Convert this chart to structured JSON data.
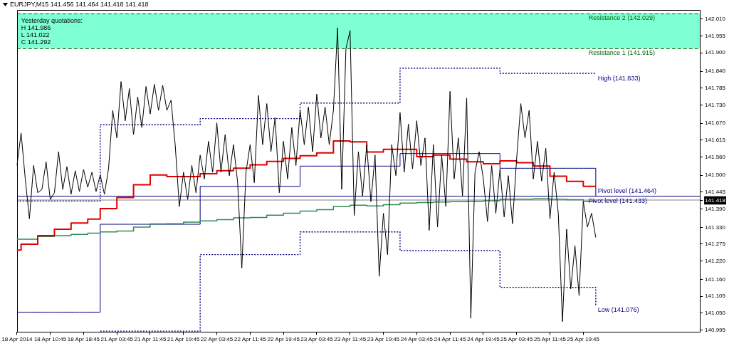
{
  "chart_data": {
    "type": "line",
    "title": "EURJPY,M15 141.456 141.464 141.418 141.418",
    "categories": [
      "18 Apr 2014",
      null,
      null,
      null,
      null,
      null,
      null,
      null,
      "18 Apr 10:45",
      null,
      null,
      null,
      null,
      null,
      null,
      null,
      "18 Apr 18:45",
      null,
      null,
      null,
      null,
      null,
      null,
      null,
      "21 Apr 03:45",
      null,
      null,
      null,
      null,
      null,
      null,
      null,
      "21 Apr 11:45",
      null,
      null,
      null,
      null,
      null,
      null,
      null,
      "21 Apr 19:45",
      null,
      null,
      null,
      null,
      null,
      null,
      null,
      "22 Apr 03:45",
      null,
      null,
      null,
      null,
      null,
      null,
      null,
      "22 Apr 11:45",
      null,
      null,
      null,
      null,
      null,
      null,
      null,
      "22 Apr 19:45",
      null,
      null,
      null,
      null,
      null,
      null,
      null,
      "23 Apr 03:45",
      null,
      null,
      null,
      null,
      null,
      null,
      null,
      "23 Apr 11:45",
      null,
      null,
      null,
      null,
      null,
      null,
      null,
      "23 Apr 19:45",
      null,
      null,
      null,
      null,
      null,
      null,
      null,
      "24 Apr 03:45",
      null,
      null,
      null,
      null,
      null,
      null,
      null,
      "24 Apr 11:45",
      null,
      null,
      null,
      null,
      null,
      null,
      null,
      "24 Apr 19:45",
      null,
      null,
      null,
      null,
      null,
      null,
      null,
      "25 Apr 03:45",
      null,
      null,
      null,
      null,
      null,
      null,
      null,
      "25 Apr 11:45",
      null,
      null,
      null,
      null,
      null,
      null,
      null,
      "25 Apr 19:45",
      null,
      null,
      null,
      null,
      null,
      null,
      null,
      null,
      null,
      null,
      null,
      null,
      null,
      null,
      null,
      null,
      null,
      null,
      null,
      null,
      null,
      null,
      null,
      null,
      null,
      null,
      null,
      null
    ],
    "ylim": [
      140.988,
      142.04
    ],
    "yticks": [
      140.995,
      {
        "value": 141.05,
        "label": "141.050"
      },
      141.105,
      {
        "value": 141.16,
        "label": "141.160"
      },
      {
        "value": 141.22,
        "label": "141.220"
      },
      141.275,
      {
        "value": 141.33,
        "label": "141.330"
      },
      {
        "value": 141.39,
        "label": "141.390"
      },
      141.418,
      141.445,
      {
        "value": 141.5,
        "label": "141.500"
      },
      {
        "value": 141.56,
        "label": "141.560"
      },
      141.615,
      {
        "value": 141.67,
        "label": "141.670"
      },
      {
        "value": 141.73,
        "label": "141.730"
      },
      141.785,
      {
        "value": 141.84,
        "label": "141.840"
      },
      {
        "value": 141.9,
        "label": "141.900"
      },
      141.955,
      {
        "value": 142.01,
        "label": "142.010"
      }
    ],
    "grid": false,
    "series": [
      {
        "color": "#000000",
        "values": [
          141.532,
          141.638,
          141.488,
          141.358,
          141.532,
          141.443,
          141.454,
          141.544,
          141.421,
          141.443,
          141.577,
          141.454,
          141.528,
          141.438,
          141.515,
          141.447,
          141.519,
          141.461,
          141.51,
          141.447,
          141.501,
          141.438,
          141.521,
          141.712,
          141.622,
          141.806,
          141.678,
          141.783,
          141.633,
          141.756,
          141.656,
          141.79,
          141.7,
          141.797,
          141.712,
          141.794,
          141.712,
          141.745,
          141.6,
          141.398,
          141.51,
          141.421,
          141.532,
          141.443,
          141.566,
          141.488,
          141.611,
          141.51,
          141.671,
          141.51,
          141.633,
          141.499,
          141.6,
          141.476,
          141.197,
          141.51,
          141.6,
          141.476,
          141.761,
          141.6,
          141.734,
          141.577,
          141.689,
          141.443,
          141.611,
          141.488,
          141.656,
          141.532,
          141.712,
          141.6,
          141.723,
          141.577,
          141.765,
          141.622,
          141.723,
          141.6,
          141.712,
          141.982,
          141.454,
          141.913,
          141.973,
          141.369,
          141.577,
          141.432,
          141.6,
          141.414,
          141.566,
          141.17,
          141.376,
          141.241,
          141.6,
          141.499,
          141.705,
          141.51,
          141.667,
          141.521,
          141.678,
          141.532,
          141.622,
          141.32,
          141.6,
          141.331,
          141.566,
          141.398,
          141.774,
          141.488,
          141.622,
          141.432,
          141.752,
          141.033,
          141.51,
          141.577,
          141.488,
          141.349,
          141.532,
          141.376,
          141.521,
          141.364,
          141.499,
          141.342,
          141.555,
          141.734,
          141.622,
          141.712,
          141.488,
          141.611,
          141.481,
          141.588,
          141.358,
          141.51,
          141.376,
          141.022,
          141.324,
          141.129,
          141.27,
          141.107,
          141.414,
          141.331,
          141.376,
          141.297,
          null,
          null,
          null,
          null,
          null,
          null,
          null,
          null,
          null,
          null,
          null,
          null,
          null,
          null,
          null,
          null,
          null,
          null,
          null,
          null,
          null,
          null,
          null,
          null,
          null
        ]
      },
      {
        "type": "step",
        "color": "#e00000",
        "values": [
          141.256,
          141.275,
          141.275,
          141.275,
          141.275,
          141.303,
          141.303,
          141.303,
          141.303,
          141.324,
          141.324,
          141.324,
          141.324,
          141.344,
          141.344,
          141.344,
          141.344,
          141.357,
          141.357,
          141.357,
          141.391,
          141.391,
          141.391,
          141.391,
          141.427,
          141.427,
          141.427,
          141.427,
          141.469,
          141.469,
          141.469,
          141.469,
          141.501,
          141.501,
          141.501,
          141.501,
          141.496,
          141.496,
          141.496,
          141.496,
          141.496,
          141.496,
          141.496,
          141.496,
          141.505,
          141.505,
          141.505,
          141.505,
          141.515,
          141.515,
          141.515,
          141.515,
          141.523,
          141.523,
          141.523,
          141.523,
          141.534,
          141.534,
          141.534,
          141.534,
          141.545,
          141.545,
          141.545,
          141.545,
          141.555,
          141.555,
          141.555,
          141.555,
          141.564,
          141.564,
          141.564,
          141.564,
          141.573,
          141.573,
          141.573,
          141.573,
          141.612,
          141.612,
          141.612,
          141.612,
          141.609,
          141.609,
          141.609,
          141.609,
          141.576,
          141.576,
          141.576,
          141.576,
          141.585,
          141.585,
          141.585,
          141.585,
          141.585,
          141.585,
          141.585,
          141.585,
          141.561,
          141.561,
          141.561,
          141.561,
          141.566,
          141.566,
          141.566,
          141.566,
          141.553,
          141.553,
          141.553,
          141.553,
          141.544,
          141.544,
          141.544,
          141.544,
          141.538,
          141.538,
          141.538,
          141.538,
          141.547,
          141.547,
          141.547,
          141.547,
          141.541,
          141.541,
          141.541,
          141.541,
          141.53,
          141.53,
          141.53,
          141.53,
          141.497,
          141.497,
          141.497,
          141.497,
          141.48,
          141.48,
          141.48,
          141.48,
          141.464,
          141.464,
          141.464,
          141.464,
          null,
          null,
          null,
          null,
          null,
          null,
          null,
          null,
          null,
          null,
          null,
          null,
          null,
          null,
          null,
          null,
          null,
          null,
          null,
          null,
          null,
          null,
          null,
          null,
          null
        ]
      },
      {
        "type": "step",
        "color": "#2e8b57",
        "values": [
          141.291,
          141.291,
          141.291,
          141.291,
          141.291,
          141.3,
          141.3,
          141.3,
          141.3,
          141.303,
          141.303,
          141.303,
          141.303,
          141.307,
          141.307,
          141.307,
          141.307,
          141.311,
          141.311,
          141.311,
          141.315,
          141.315,
          141.315,
          141.315,
          141.318,
          141.318,
          141.318,
          141.318,
          141.331,
          141.331,
          141.331,
          141.331,
          141.341,
          141.341,
          141.341,
          141.341,
          141.342,
          141.342,
          141.342,
          141.342,
          141.347,
          141.347,
          141.347,
          141.347,
          141.351,
          141.351,
          141.351,
          141.351,
          141.355,
          141.355,
          141.355,
          141.355,
          141.361,
          141.361,
          141.361,
          141.361,
          141.362,
          141.362,
          141.362,
          141.362,
          141.37,
          141.37,
          141.37,
          141.37,
          141.376,
          141.376,
          141.376,
          141.376,
          141.383,
          141.383,
          141.383,
          141.383,
          141.388,
          141.388,
          141.388,
          141.388,
          141.398,
          141.398,
          141.398,
          141.398,
          141.402,
          141.402,
          141.402,
          141.402,
          141.4,
          141.4,
          141.4,
          141.4,
          141.404,
          141.404,
          141.404,
          141.404,
          141.409,
          141.409,
          141.409,
          141.409,
          141.411,
          141.411,
          141.411,
          141.411,
          141.413,
          141.413,
          141.413,
          141.413,
          141.414,
          141.414,
          141.414,
          141.414,
          141.415,
          141.415,
          141.415,
          141.415,
          141.417,
          141.417,
          141.417,
          141.417,
          141.422,
          141.422,
          141.422,
          141.422,
          141.422,
          141.422,
          141.422,
          141.422,
          141.423,
          141.423,
          141.423,
          141.423,
          141.422,
          141.422,
          141.422,
          141.422,
          141.42,
          141.42,
          141.42,
          141.42,
          141.415,
          141.415,
          141.415,
          141.415,
          null,
          null,
          null,
          null,
          null,
          null,
          null,
          null,
          null,
          null,
          null,
          null,
          null,
          null,
          null,
          null,
          null,
          null,
          null,
          null,
          null,
          null,
          null,
          null,
          null
        ]
      },
      {
        "type": "step",
        "color": "#000080",
        "values": [
          141.053,
          141.053,
          141.053,
          141.053,
          141.053,
          141.053,
          141.053,
          141.053,
          141.053,
          141.053,
          141.053,
          141.053,
          141.053,
          141.053,
          141.053,
          141.053,
          141.053,
          141.053,
          141.053,
          141.053,
          141.34,
          141.34,
          141.34,
          141.34,
          141.34,
          141.34,
          141.34,
          141.34,
          141.34,
          141.34,
          141.34,
          141.34,
          141.34,
          141.34,
          141.34,
          141.34,
          141.34,
          141.34,
          141.34,
          141.34,
          141.34,
          141.34,
          141.34,
          141.34,
          141.464,
          141.464,
          141.464,
          141.464,
          141.464,
          141.464,
          141.464,
          141.464,
          141.464,
          141.464,
          141.464,
          141.464,
          141.464,
          141.464,
          141.464,
          141.464,
          141.464,
          141.464,
          141.464,
          141.464,
          141.464,
          141.464,
          141.464,
          141.464,
          141.53,
          141.53,
          141.53,
          141.53,
          141.53,
          141.53,
          141.53,
          141.53,
          141.53,
          141.53,
          141.53,
          141.53,
          141.53,
          141.53,
          141.53,
          141.53,
          141.53,
          141.53,
          141.53,
          141.53,
          141.53,
          141.53,
          141.53,
          141.53,
          141.571,
          141.571,
          141.571,
          141.571,
          141.571,
          141.571,
          141.571,
          141.571,
          141.571,
          141.571,
          141.571,
          141.571,
          141.571,
          141.571,
          141.571,
          141.571,
          141.571,
          141.571,
          141.571,
          141.571,
          141.571,
          141.571,
          141.571,
          141.571,
          141.523,
          141.523,
          141.523,
          141.523,
          141.523,
          141.523,
          141.523,
          141.523,
          141.523,
          141.523,
          141.523,
          141.523,
          141.523,
          141.523,
          141.523,
          141.523,
          141.523,
          141.523,
          141.523,
          141.523,
          141.523,
          141.523,
          141.523,
          141.433,
          null,
          null,
          null,
          null,
          null,
          null,
          null,
          null,
          null,
          null,
          null,
          null,
          null,
          null,
          null,
          null,
          null,
          null,
          null,
          null,
          null,
          null,
          null,
          null,
          null
        ]
      },
      {
        "type": "step",
        "color": "#000080",
        "line_style": "dotted",
        "values": [
          141.416,
          141.416,
          141.416,
          141.416,
          141.416,
          141.416,
          141.416,
          141.416,
          141.416,
          141.416,
          141.416,
          141.416,
          141.416,
          141.416,
          141.416,
          141.416,
          141.416,
          141.416,
          141.416,
          141.416,
          141.665,
          141.665,
          141.665,
          141.665,
          141.665,
          141.665,
          141.665,
          141.665,
          141.665,
          141.665,
          141.665,
          141.665,
          141.665,
          141.665,
          141.665,
          141.665,
          141.665,
          141.665,
          141.665,
          141.665,
          141.665,
          141.665,
          141.665,
          141.665,
          141.685,
          141.685,
          141.685,
          141.685,
          141.685,
          141.685,
          141.685,
          141.685,
          141.685,
          141.685,
          141.685,
          141.685,
          141.685,
          141.685,
          141.685,
          141.685,
          141.685,
          141.685,
          141.685,
          141.685,
          141.685,
          141.685,
          141.685,
          141.685,
          141.736,
          141.736,
          141.736,
          141.736,
          141.736,
          141.736,
          141.736,
          141.736,
          141.736,
          141.736,
          141.736,
          141.736,
          141.736,
          141.736,
          141.736,
          141.736,
          141.736,
          141.736,
          141.736,
          141.736,
          141.736,
          141.736,
          141.736,
          141.736,
          141.85,
          141.85,
          141.85,
          141.85,
          141.85,
          141.85,
          141.85,
          141.85,
          141.85,
          141.85,
          141.85,
          141.85,
          141.85,
          141.85,
          141.85,
          141.85,
          141.85,
          141.85,
          141.85,
          141.85,
          141.85,
          141.85,
          141.85,
          141.85,
          141.833,
          141.833,
          141.833,
          141.833,
          141.833,
          141.833,
          141.833,
          141.833,
          141.833,
          141.833,
          141.833,
          141.833,
          141.833,
          141.833,
          141.833,
          141.833,
          141.833,
          141.833,
          141.833,
          141.833,
          141.833,
          141.833,
          141.833,
          141.833,
          null,
          null,
          null,
          null,
          null,
          null,
          null,
          null,
          null,
          null,
          null,
          null,
          null,
          null,
          null,
          null,
          null,
          null,
          null,
          null,
          null,
          null,
          null,
          null,
          null
        ]
      },
      {
        "type": "step",
        "color": "#000080",
        "line_style": "dotted",
        "values": [
          null,
          null,
          null,
          null,
          null,
          null,
          null,
          null,
          null,
          null,
          null,
          null,
          null,
          null,
          null,
          null,
          null,
          null,
          null,
          null,
          140.991,
          140.991,
          140.991,
          140.991,
          140.991,
          140.991,
          140.991,
          140.991,
          140.991,
          140.991,
          140.991,
          140.991,
          140.991,
          140.991,
          140.991,
          140.991,
          140.991,
          140.991,
          140.991,
          140.991,
          140.991,
          140.991,
          140.991,
          140.991,
          141.241,
          141.241,
          141.241,
          141.241,
          141.241,
          141.241,
          141.241,
          141.241,
          141.241,
          141.241,
          141.241,
          141.241,
          141.241,
          141.241,
          141.241,
          141.241,
          141.241,
          141.241,
          141.241,
          141.241,
          141.241,
          141.241,
          141.241,
          141.241,
          141.315,
          141.315,
          141.315,
          141.315,
          141.315,
          141.315,
          141.315,
          141.315,
          141.315,
          141.315,
          141.315,
          141.315,
          141.315,
          141.315,
          141.315,
          141.315,
          141.315,
          141.315,
          141.315,
          141.315,
          141.315,
          141.315,
          141.315,
          141.315,
          141.254,
          141.254,
          141.254,
          141.254,
          141.254,
          141.254,
          141.254,
          141.254,
          141.254,
          141.254,
          141.254,
          141.254,
          141.254,
          141.254,
          141.254,
          141.254,
          141.254,
          141.254,
          141.254,
          141.254,
          141.254,
          141.254,
          141.254,
          141.254,
          141.134,
          141.134,
          141.134,
          141.134,
          141.134,
          141.134,
          141.134,
          141.134,
          141.134,
          141.134,
          141.134,
          141.134,
          141.134,
          141.134,
          141.134,
          141.134,
          141.134,
          141.134,
          141.134,
          141.134,
          141.134,
          141.134,
          141.134,
          141.076,
          null,
          null,
          null,
          null,
          null,
          null,
          null,
          null,
          null,
          null,
          null,
          null,
          null,
          null,
          null,
          null,
          null,
          null,
          null,
          null,
          null,
          null,
          null,
          null,
          null
        ]
      }
    ],
    "bands": [
      {
        "axis": "y",
        "from": 141.915,
        "to": 142.029,
        "color": "#7fffd4"
      }
    ],
    "ref_lines": [
      {
        "axis": "y",
        "value": 142.029,
        "label": "Resistance 2 (142.029)",
        "color": "#006400",
        "line_style": "dashed"
      },
      {
        "axis": "y",
        "value": 141.915,
        "label": "Resistance 1 (141.915)",
        "color": "#006400",
        "line_style": "dashed"
      },
      {
        "axis": "y",
        "value": 141.433,
        "label": "Pivot level (141.433)",
        "color": "#000080"
      },
      {
        "axis": "y",
        "value": 141.418,
        "color": "#c0c0c0"
      }
    ],
    "annotations": [
      "Yesterday quotations:",
      "H 141.986",
      "L 141.022",
      "C 141.292",
      "Pivot level (141.464)",
      "High (141.833)",
      "Low (141.076)"
    ]
  }
}
